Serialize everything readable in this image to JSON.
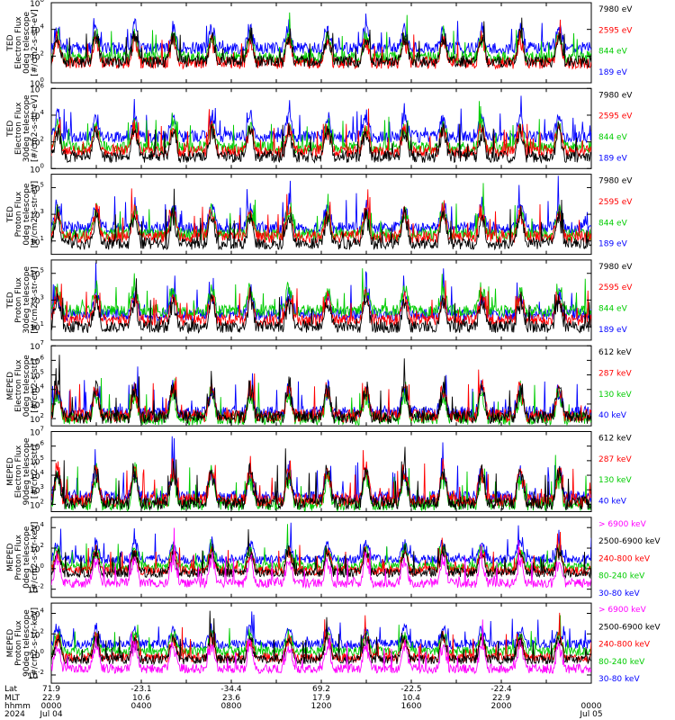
{
  "chart_data": {
    "type": "line",
    "x_axis": {
      "rows": [
        {
          "label": "Lat",
          "values": [
            "71.9",
            "-23.1",
            "-34.4",
            "69.2",
            "-22.5",
            "-22.4",
            ""
          ]
        },
        {
          "label": "MLT",
          "values": [
            "22.9",
            "10.6",
            "23.6",
            "17.9",
            "10.4",
            "22.9",
            ""
          ]
        },
        {
          "label": "hhmm",
          "values": [
            "0000",
            "0400",
            "0800",
            "1200",
            "1600",
            "2000",
            "0000"
          ]
        },
        {
          "label": "2024",
          "values": [
            "Jul 04",
            "",
            "",
            "",
            "",
            "",
            "Jul 05"
          ]
        }
      ],
      "range_hours": [
        0,
        24
      ]
    },
    "panels": [
      {
        "ylabel": [
          "TED",
          "Electron Flux",
          "0deg telescope",
          "[#/cm2-s-str-eV]"
        ],
        "y_ticks": [
          {
            "exp": "6"
          },
          {
            "exp": "4"
          },
          {
            "exp": "2"
          },
          {
            "exp": "0"
          }
        ],
        "ylim_log10": [
          0,
          6
        ],
        "baselines": [
          1.6,
          1.5,
          1.9,
          2.6
        ],
        "amp": 2.4,
        "series": [
          {
            "name": "7980 eV",
            "color": "#000000"
          },
          {
            "name": "2595 eV",
            "color": "#ff0000"
          },
          {
            "name": "844 eV",
            "color": "#00cc00"
          },
          {
            "name": "189 eV",
            "color": "#0000ff"
          }
        ]
      },
      {
        "ylabel": [
          "TED",
          "Electron Flux",
          "30deg telescope",
          "[#/cm2-s-str-eV]"
        ],
        "y_ticks": [
          {
            "exp": "6"
          },
          {
            "exp": "4"
          },
          {
            "exp": "2"
          },
          {
            "exp": "0"
          }
        ],
        "ylim_log10": [
          0,
          6
        ],
        "baselines": [
          0.9,
          1.3,
          1.6,
          2.4
        ],
        "amp": 2.4,
        "series": [
          {
            "name": "7980 eV",
            "color": "#000000"
          },
          {
            "name": "2595 eV",
            "color": "#ff0000"
          },
          {
            "name": "844 eV",
            "color": "#00cc00"
          },
          {
            "name": "189 eV",
            "color": "#0000ff"
          }
        ]
      },
      {
        "ylabel": [
          "TED",
          "Proton Flux",
          "0deg telescope",
          "[#/cm2-s-str-eV]"
        ],
        "y_ticks": [
          {
            "exp": "5"
          },
          {
            "exp": "3"
          },
          {
            "exp": "1"
          }
        ],
        "ylim_log10": [
          0,
          6
        ],
        "baselines": [
          0.8,
          1.3,
          1.5,
          2.0
        ],
        "amp": 2.6,
        "series": [
          {
            "name": "7980 eV",
            "color": "#000000"
          },
          {
            "name": "2595 eV",
            "color": "#ff0000"
          },
          {
            "name": "844 eV",
            "color": "#00cc00"
          },
          {
            "name": "189 eV",
            "color": "#0000ff"
          }
        ]
      },
      {
        "ylabel": [
          "TED",
          "Proton Flux",
          "30deg telescope",
          "[#/cm2-s-str-eV]"
        ],
        "y_ticks": [
          {
            "exp": "5"
          },
          {
            "exp": "3"
          },
          {
            "exp": "1"
          }
        ],
        "ylim_log10": [
          0,
          6
        ],
        "baselines": [
          1.0,
          1.5,
          2.2,
          1.9
        ],
        "amp": 2.4,
        "series": [
          {
            "name": "7980 eV",
            "color": "#000000"
          },
          {
            "name": "2595 eV",
            "color": "#ff0000"
          },
          {
            "name": "844 eV",
            "color": "#00cc00"
          },
          {
            "name": "189 eV",
            "color": "#0000ff"
          }
        ]
      },
      {
        "ylabel": [
          "MEPED",
          "Electron Flux",
          "0deg telescope",
          "[#/cm2-s-str]"
        ],
        "y_ticks": [
          {
            "exp": "7"
          },
          {
            "exp": "6"
          },
          {
            "exp": "5"
          },
          {
            "exp": "4"
          },
          {
            "exp": "3"
          },
          {
            "exp": "2"
          }
        ],
        "ylim_log10": [
          1.5,
          7
        ],
        "baselines": [
          2.1,
          2.2,
          2.0,
          2.4
        ],
        "amp": 2.6,
        "series": [
          {
            "name": "612 keV",
            "color": "#000000"
          },
          {
            "name": "287 keV",
            "color": "#ff0000"
          },
          {
            "name": "130 keV",
            "color": "#00cc00"
          },
          {
            "name": "40 keV",
            "color": "#0000ff"
          }
        ]
      },
      {
        "ylabel": [
          "MEPED",
          "Electron Flux",
          "90deg telescope",
          "[#/cm2-s-str]"
        ],
        "y_ticks": [
          {
            "exp": "7"
          },
          {
            "exp": "6"
          },
          {
            "exp": "5"
          },
          {
            "exp": "4"
          },
          {
            "exp": "3"
          },
          {
            "exp": "2"
          }
        ],
        "ylim_log10": [
          1.5,
          7
        ],
        "baselines": [
          2.1,
          2.3,
          2.0,
          2.5
        ],
        "amp": 2.8,
        "series": [
          {
            "name": "612 keV",
            "color": "#000000"
          },
          {
            "name": "287 keV",
            "color": "#ff0000"
          },
          {
            "name": "130 keV",
            "color": "#00cc00"
          },
          {
            "name": "40 keV",
            "color": "#0000ff"
          }
        ]
      },
      {
        "ylabel": [
          "MEPED",
          "Proton Flux",
          "0deg telescope",
          "[#/cm2-s-str-keV]"
        ],
        "y_ticks": [
          {
            "exp": "4"
          },
          {
            "exp": "2"
          },
          {
            "exp": "0"
          },
          {
            "exp": "-2"
          }
        ],
        "ylim_log10": [
          -2.8,
          5
        ],
        "baselines": [
          -1.4,
          -0.4,
          -0.2,
          0.2,
          0.9
        ],
        "amp": 2.8,
        "series": [
          {
            "name": "> 6900 keV",
            "color": "#ff00ff"
          },
          {
            "name": "2500-6900 keV",
            "color": "#000000"
          },
          {
            "name": "240-800 keV",
            "color": "#ff0000"
          },
          {
            "name": "80-240 keV",
            "color": "#00cc00"
          },
          {
            "name": "30-80 keV",
            "color": "#0000ff"
          }
        ]
      },
      {
        "ylabel": [
          "MEPED",
          "Proton Flux",
          "90deg telescope",
          "[#/cm2-s-str-keV]"
        ],
        "y_ticks": [
          {
            "exp": "4"
          },
          {
            "exp": "2"
          },
          {
            "exp": "0"
          },
          {
            "exp": "-2"
          }
        ],
        "ylim_log10": [
          -2.8,
          5
        ],
        "baselines": [
          -1.4,
          -0.5,
          -0.3,
          0.3,
          1.0
        ],
        "amp": 2.8,
        "series": [
          {
            "name": "> 6900 keV",
            "color": "#ff00ff"
          },
          {
            "name": "2500-6900 keV",
            "color": "#000000"
          },
          {
            "name": "240-800 keV",
            "color": "#ff0000"
          },
          {
            "name": "80-240 keV",
            "color": "#00cc00"
          },
          {
            "name": "30-80 keV",
            "color": "#0000ff"
          }
        ]
      }
    ]
  }
}
